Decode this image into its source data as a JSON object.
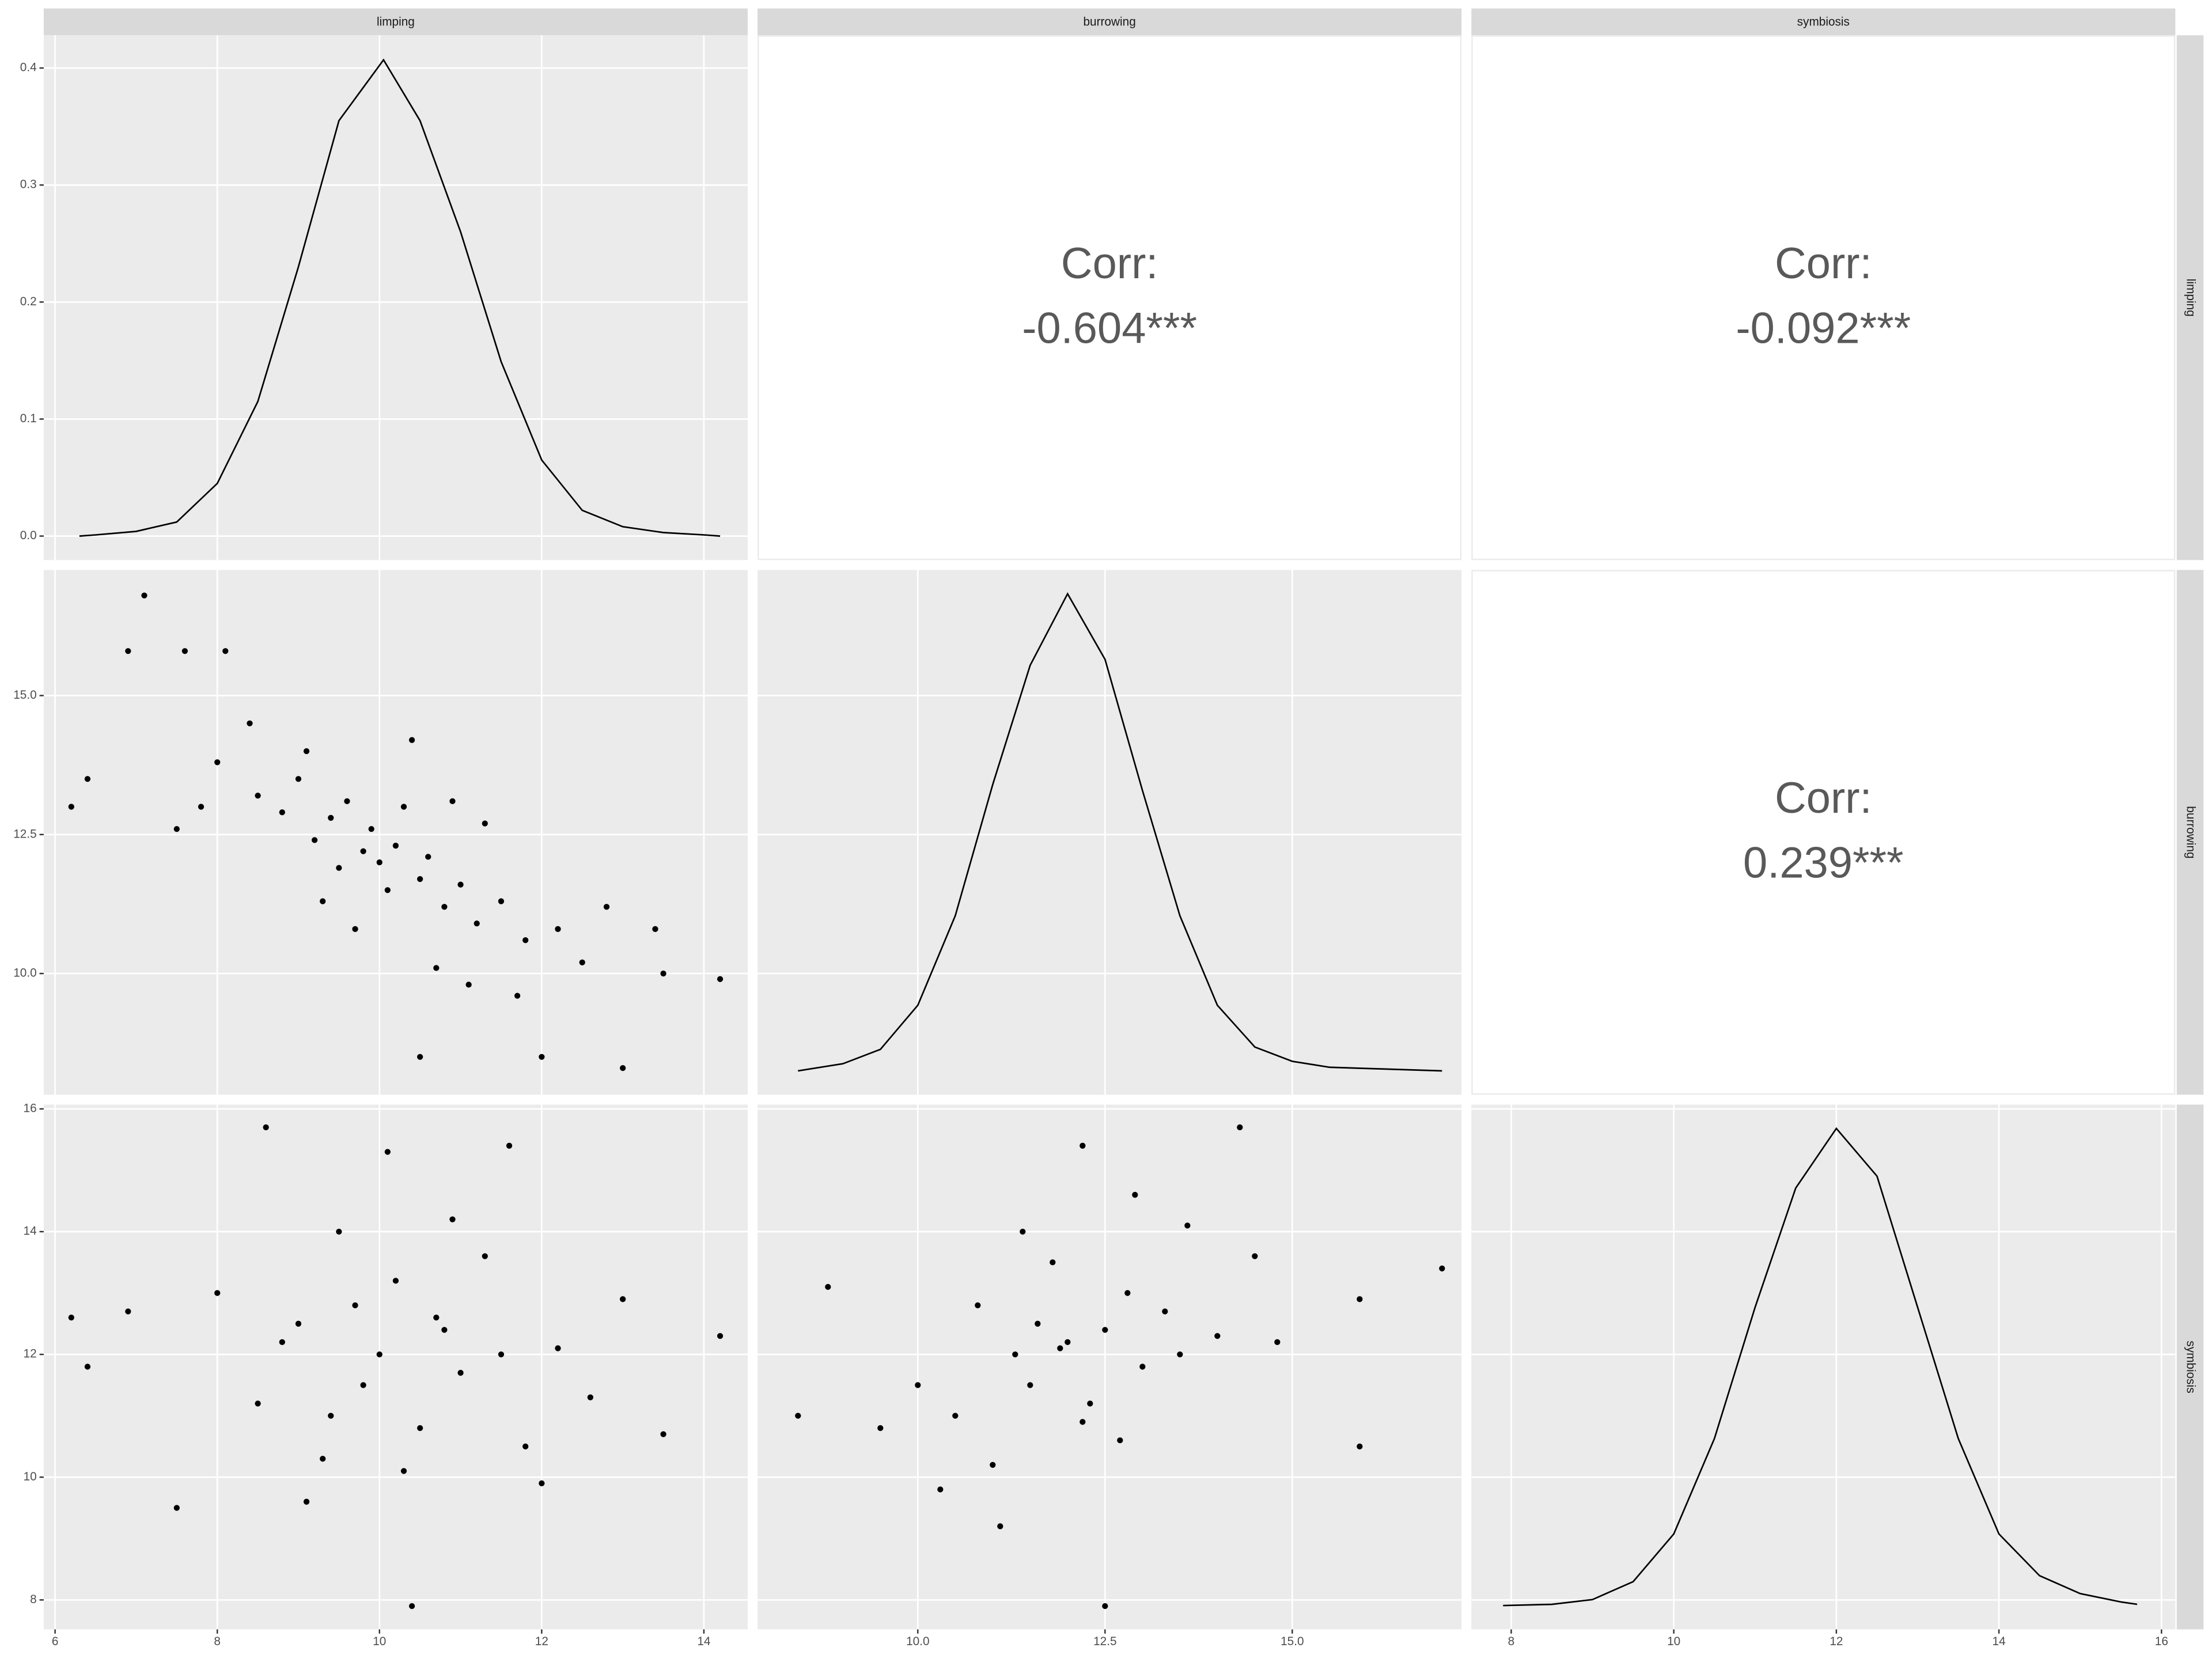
{
  "facets": {
    "columns": [
      "limping",
      "burrowing",
      "symbiosis"
    ],
    "rows": [
      "limping",
      "burrowing",
      "symbiosis"
    ]
  },
  "chart_data": [
    {
      "type": "density",
      "color": "#000000",
      "x": [
        6.3,
        6.5,
        7.0,
        7.5,
        8.0,
        8.5,
        9.0,
        9.5,
        10.05,
        10.5,
        11.0,
        11.5,
        12.0,
        12.5,
        13.0,
        13.5,
        14.0,
        14.2
      ],
      "values": [
        0.0,
        0.001,
        0.004,
        0.012,
        0.045,
        0.115,
        0.23,
        0.355,
        0.407,
        0.355,
        0.26,
        0.149,
        0.065,
        0.022,
        0.008,
        0.003,
        0.001,
        0.0
      ],
      "ylim": [
        -0.0205,
        0.428
      ],
      "yticks": [
        {
          "value": 0,
          "label": "0.0"
        },
        {
          "value": 0.1,
          "label": "0.1"
        },
        {
          "value": 0.2,
          "label": "0.2"
        },
        {
          "value": 0.3,
          "label": "0.3"
        },
        {
          "value": 0.4,
          "label": "0.4"
        }
      ]
    },
    {
      "type": "corr",
      "label": "Corr:",
      "values": [
        -0.604
      ],
      "value_labels": [
        "-0.604***"
      ]
    },
    {
      "type": "corr",
      "label": "Corr:",
      "values": [
        -0.092
      ],
      "value_labels": [
        "-0.092***"
      ]
    },
    {
      "type": "scatter",
      "color": "#000000",
      "x": [
        6.2,
        6.4,
        7.1,
        6.9,
        7.6,
        8.1,
        14.2,
        13.0,
        10.5,
        12.0,
        13.4,
        13.5,
        8.0,
        8.5,
        8.8,
        9.0,
        9.2,
        9.4,
        9.5,
        9.6,
        9.8,
        9.9,
        10.0,
        10.1,
        10.2,
        10.3,
        10.5,
        10.6,
        10.8,
        11.0,
        11.2,
        11.5,
        11.8,
        12.2,
        12.5,
        8.4,
        9.1,
        9.7,
        10.4,
        10.9,
        11.3,
        11.7,
        12.8,
        7.5,
        7.8,
        9.3,
        10.7,
        11.1
      ],
      "values": [
        13.0,
        13.5,
        16.8,
        15.8,
        15.8,
        15.8,
        9.9,
        8.3,
        8.5,
        8.5,
        10.8,
        10.0,
        13.8,
        13.2,
        12.9,
        13.5,
        12.4,
        12.8,
        11.9,
        13.1,
        12.2,
        12.6,
        12.0,
        11.5,
        12.3,
        13.0,
        11.7,
        12.1,
        11.2,
        11.6,
        10.9,
        11.3,
        10.6,
        10.8,
        10.2,
        14.5,
        14.0,
        10.8,
        14.2,
        13.1,
        12.7,
        9.6,
        11.2,
        12.6,
        13.0,
        11.3,
        10.1,
        9.8
      ],
      "ylim": [
        7.82,
        17.26
      ],
      "yticks": [
        {
          "value": 10,
          "label": "10.0"
        },
        {
          "value": 12.5,
          "label": "12.5"
        },
        {
          "value": 15,
          "label": "15.0"
        }
      ]
    },
    {
      "type": "density",
      "color": "#000000",
      "x": [
        8.4,
        9.0,
        9.5,
        10.0,
        10.5,
        11.0,
        11.5,
        12.0,
        12.5,
        13.0,
        13.5,
        14.0,
        14.5,
        15.0,
        15.5,
        16.0,
        17.0
      ],
      "values": [
        0.0,
        0.006,
        0.018,
        0.055,
        0.13,
        0.24,
        0.34,
        0.4,
        0.345,
        0.235,
        0.13,
        0.055,
        0.02,
        0.008,
        0.003,
        0.002,
        0.0
      ],
      "ylim": [
        -0.02,
        0.42
      ]
    },
    {
      "type": "corr",
      "label": "Corr:",
      "values": [
        0.239
      ],
      "value_labels": [
        "0.239***"
      ]
    },
    {
      "type": "scatter",
      "color": "#000000",
      "x": [
        6.2,
        6.4,
        6.9,
        14.2,
        13.5,
        10.4,
        8.6,
        11.6,
        7.5,
        8.0,
        8.5,
        9.0,
        9.3,
        9.5,
        9.8,
        10.0,
        10.2,
        10.5,
        10.8,
        11.0,
        11.3,
        11.8,
        12.2,
        12.6,
        13.0,
        9.1,
        9.7,
        10.3,
        10.9,
        11.5,
        8.8,
        12.0,
        10.1,
        9.4,
        10.7
      ],
      "values": [
        12.6,
        11.8,
        12.7,
        12.3,
        10.7,
        7.9,
        15.7,
        15.4,
        9.5,
        13.0,
        11.2,
        12.5,
        10.3,
        14.0,
        11.5,
        12.0,
        13.2,
        10.8,
        12.4,
        11.7,
        13.6,
        10.5,
        12.1,
        11.3,
        12.9,
        9.6,
        12.8,
        10.1,
        14.2,
        12.0,
        12.2,
        9.9,
        15.3,
        11.0,
        12.6
      ],
      "xlim": [
        5.86,
        14.54
      ],
      "xticks": [
        6,
        8,
        10,
        12,
        14
      ],
      "ylim": [
        7.52,
        16.07
      ],
      "yticks": [
        8,
        10,
        12,
        14,
        16
      ]
    },
    {
      "type": "scatter",
      "color": "#000000",
      "x": [
        8.4,
        8.8,
        17.0,
        15.9,
        15.9,
        12.5,
        14.3,
        12.2,
        9.5,
        10.0,
        10.5,
        10.8,
        11.0,
        11.3,
        11.5,
        11.8,
        12.0,
        12.2,
        12.5,
        12.8,
        13.0,
        13.3,
        13.6,
        14.0,
        14.5,
        11.1,
        11.6,
        12.3,
        12.9,
        13.5,
        10.3,
        11.9,
        12.7,
        11.4,
        14.8
      ],
      "values": [
        11.0,
        13.1,
        13.4,
        12.9,
        10.5,
        7.9,
        15.7,
        15.4,
        10.8,
        11.5,
        11.0,
        12.8,
        10.2,
        12.0,
        11.5,
        13.5,
        12.2,
        10.9,
        12.4,
        13.0,
        11.8,
        12.7,
        14.1,
        12.3,
        13.6,
        9.2,
        12.5,
        11.2,
        14.6,
        12.0,
        9.8,
        12.1,
        10.6,
        14.0,
        12.2
      ],
      "xlim": [
        7.86,
        17.26
      ],
      "xticks": [
        {
          "value": 10,
          "label": "10.0"
        },
        {
          "value": 12.5,
          "label": "12.5"
        },
        {
          "value": 15,
          "label": "15.0"
        }
      ]
    },
    {
      "type": "density",
      "color": "#000000",
      "x": [
        7.9,
        8.5,
        9.0,
        9.5,
        10.0,
        10.5,
        11.0,
        11.5,
        12.0,
        12.5,
        13.0,
        13.5,
        14.0,
        14.5,
        15.0,
        15.5,
        15.7
      ],
      "values": [
        0.0,
        0.001,
        0.005,
        0.02,
        0.06,
        0.14,
        0.25,
        0.35,
        0.4,
        0.36,
        0.25,
        0.14,
        0.06,
        0.025,
        0.01,
        0.003,
        0.001
      ],
      "xlim": [
        7.51,
        16.17
      ],
      "xticks": [
        8,
        10,
        12,
        14,
        16
      ],
      "ylim": [
        -0.02,
        0.42
      ]
    }
  ]
}
